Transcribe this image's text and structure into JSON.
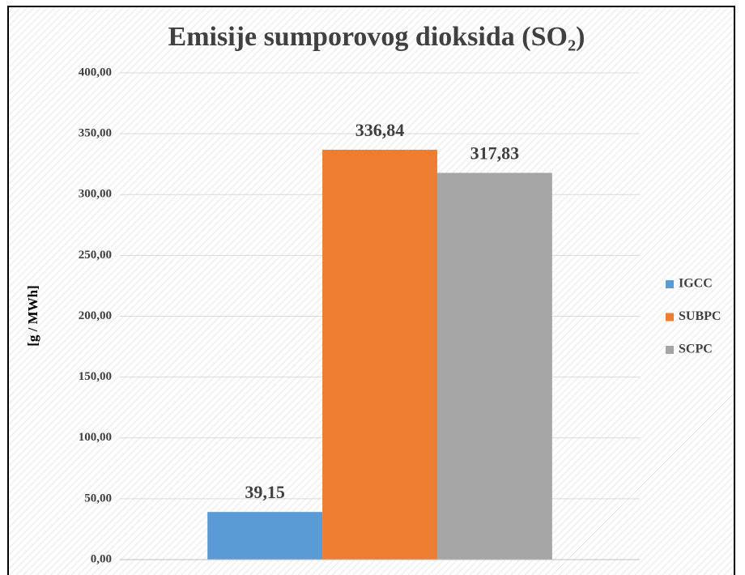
{
  "chart_data": {
    "type": "bar",
    "title": "Emisije sumporovog dioksida (SO₂)",
    "y_label": "[g / MWh]",
    "categories": [
      null
    ],
    "series": [
      {
        "name": "IGCC",
        "color": "#5b9bd5",
        "values": [
          39.15
        ],
        "value_labels": [
          "39,15"
        ]
      },
      {
        "name": "SUBPC",
        "color": "#ed7d31",
        "values": [
          336.84
        ],
        "value_labels": [
          "336,84"
        ]
      },
      {
        "name": "SCPC",
        "color": "#a5a5a5",
        "values": [
          317.83
        ],
        "value_labels": [
          "317,83"
        ]
      }
    ],
    "ylim": [
      0,
      400
    ],
    "yticks": [
      {
        "value": 0,
        "label": "0,00"
      },
      {
        "value": 50,
        "label": "50,00"
      },
      {
        "value": 100,
        "label": "100,00"
      },
      {
        "value": 150,
        "label": "150,00"
      },
      {
        "value": 200,
        "label": "200,00"
      },
      {
        "value": 250,
        "label": "250,00"
      },
      {
        "value": 300,
        "label": "300,00"
      },
      {
        "value": 350,
        "label": "350,00"
      },
      {
        "value": 400,
        "label": "400,00"
      }
    ],
    "grid": true,
    "legend": "right"
  }
}
